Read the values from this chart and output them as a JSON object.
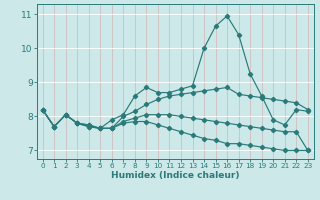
{
  "title": "",
  "xlabel": "Humidex (Indice chaleur)",
  "background_color": "#cde8e8",
  "grid_color": "#ffffff",
  "line_color": "#2a7a7a",
  "xlim": [
    -0.5,
    23.5
  ],
  "ylim": [
    6.75,
    11.3
  ],
  "yticks": [
    7,
    8,
    9,
    10,
    11
  ],
  "xticks": [
    0,
    1,
    2,
    3,
    4,
    5,
    6,
    7,
    8,
    9,
    10,
    11,
    12,
    13,
    14,
    15,
    16,
    17,
    18,
    19,
    20,
    21,
    22,
    23
  ],
  "lines": [
    {
      "x": [
        0,
        1,
        2,
        3,
        4,
        5,
        6,
        7,
        8,
        9,
        10,
        11,
        12,
        13,
        14,
        15,
        16,
        17,
        18,
        19,
        20,
        21,
        22,
        23
      ],
      "y": [
        8.2,
        7.7,
        8.05,
        7.8,
        7.75,
        7.65,
        7.9,
        8.05,
        8.6,
        8.85,
        8.7,
        8.7,
        8.8,
        8.9,
        10.0,
        10.65,
        10.95,
        10.4,
        9.25,
        8.6,
        7.9,
        7.75,
        8.2,
        8.15
      ]
    },
    {
      "x": [
        0,
        1,
        2,
        3,
        4,
        5,
        6,
        7,
        8,
        9,
        10,
        11,
        12,
        13,
        14,
        15,
        16,
        17,
        18,
        19,
        20,
        21,
        22,
        23
      ],
      "y": [
        8.2,
        7.7,
        8.05,
        7.8,
        7.75,
        7.65,
        7.65,
        8.0,
        8.15,
        8.35,
        8.5,
        8.6,
        8.65,
        8.7,
        8.75,
        8.8,
        8.85,
        8.65,
        8.6,
        8.55,
        8.5,
        8.45,
        8.4,
        8.2
      ]
    },
    {
      "x": [
        0,
        1,
        2,
        3,
        4,
        5,
        6,
        7,
        8,
        9,
        10,
        11,
        12,
        13,
        14,
        15,
        16,
        17,
        18,
        19,
        20,
        21,
        22,
        23
      ],
      "y": [
        8.2,
        7.7,
        8.05,
        7.8,
        7.7,
        7.65,
        7.65,
        7.85,
        7.95,
        8.05,
        8.05,
        8.05,
        8.0,
        7.95,
        7.9,
        7.85,
        7.8,
        7.75,
        7.7,
        7.65,
        7.6,
        7.55,
        7.55,
        7.0
      ]
    },
    {
      "x": [
        0,
        1,
        2,
        3,
        4,
        5,
        6,
        7,
        8,
        9,
        10,
        11,
        12,
        13,
        14,
        15,
        16,
        17,
        18,
        19,
        20,
        21,
        22,
        23
      ],
      "y": [
        8.2,
        7.7,
        8.05,
        7.8,
        7.7,
        7.65,
        7.65,
        7.8,
        7.85,
        7.85,
        7.75,
        7.65,
        7.55,
        7.45,
        7.35,
        7.3,
        7.2,
        7.2,
        7.15,
        7.1,
        7.05,
        7.0,
        7.0,
        7.0
      ]
    }
  ]
}
